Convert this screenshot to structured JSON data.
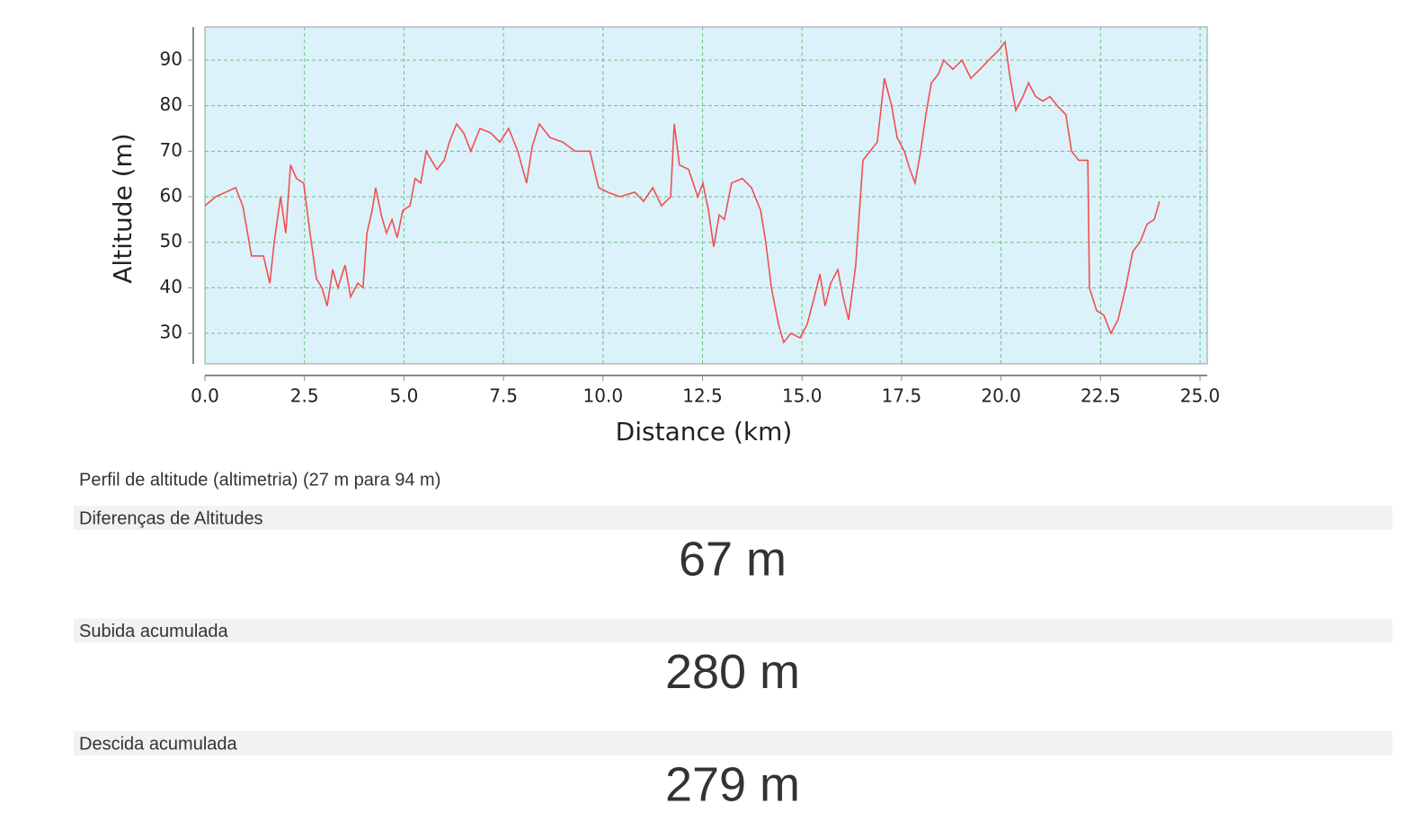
{
  "chart_data": {
    "type": "line",
    "xlabel": "Distance (km)",
    "ylabel": "Altitude (m)",
    "x": [
      0,
      0.27,
      0.77,
      0.95,
      1.17,
      1.47,
      1.63,
      1.74,
      1.9,
      2.03,
      2.15,
      2.3,
      2.48,
      2.64,
      2.8,
      2.94,
      3.07,
      3.21,
      3.34,
      3.52,
      3.66,
      3.84,
      3.97,
      4.07,
      4.2,
      4.29,
      4.43,
      4.56,
      4.7,
      4.83,
      4.97,
      5.15,
      5.28,
      5.42,
      5.56,
      5.69,
      5.83,
      6.01,
      6.14,
      6.32,
      6.5,
      6.68,
      6.91,
      7.18,
      7.41,
      7.63,
      7.86,
      8.08,
      8.22,
      8.4,
      8.67,
      8.99,
      9.3,
      9.67,
      9.89,
      10.12,
      10.43,
      10.8,
      11.02,
      11.25,
      11.47,
      11.7,
      11.79,
      11.92,
      12.15,
      12.38,
      12.51,
      12.65,
      12.78,
      12.92,
      13.05,
      13.23,
      13.5,
      13.73,
      13.96,
      14.09,
      14.23,
      14.41,
      14.54,
      14.72,
      14.95,
      15.13,
      15.31,
      15.45,
      15.58,
      15.72,
      15.9,
      16.03,
      16.17,
      16.35,
      16.53,
      16.71,
      16.89,
      17.07,
      17.25,
      17.39,
      17.57,
      17.71,
      17.84,
      17.98,
      18.11,
      18.25,
      18.43,
      18.56,
      18.79,
      19.02,
      19.24,
      19.47,
      19.69,
      19.92,
      20.1,
      20.23,
      20.37,
      20.55,
      20.69,
      20.87,
      21.05,
      21.23,
      21.41,
      21.63,
      21.77,
      21.95,
      22.18,
      22.22,
      22.4,
      22.58,
      22.76,
      22.94,
      23.13,
      23.31,
      23.49,
      23.67,
      23.85,
      23.98
    ],
    "series": [
      {
        "color": "#f05050",
        "values": [
          58,
          60,
          62,
          58,
          47,
          47,
          41,
          50,
          60,
          52,
          67,
          64,
          63,
          52,
          42,
          40,
          36,
          44,
          40,
          45,
          38,
          41,
          40,
          52,
          57,
          62,
          56,
          52,
          55,
          51,
          57,
          58,
          64,
          63,
          70,
          68,
          66,
          68,
          72,
          76,
          74,
          70,
          75,
          74,
          72,
          75,
          70,
          63,
          71,
          76,
          73,
          72,
          70,
          70,
          62,
          61,
          60,
          61,
          59,
          62,
          58,
          60,
          76,
          67,
          66,
          60,
          63,
          57,
          49,
          56,
          55,
          63,
          64,
          62,
          57,
          50,
          40,
          32,
          28,
          30,
          29,
          32,
          38,
          43,
          36,
          41,
          44,
          38,
          33,
          45,
          68,
          70,
          72,
          86,
          80,
          73,
          70,
          66,
          63,
          70,
          78,
          85,
          87,
          90,
          88,
          90,
          86,
          88,
          90,
          92,
          94,
          86,
          79,
          82,
          85,
          82,
          81,
          82,
          80,
          78,
          70,
          68,
          68,
          40,
          35,
          34,
          30,
          33,
          40,
          48,
          50,
          54,
          55,
          59
        ]
      }
    ],
    "xlim": [
      0,
      25.18
    ],
    "ylim": [
      23.3,
      97.3
    ],
    "xticks": [
      {
        "value": 0,
        "label": "0.0"
      },
      2.5,
      {
        "value": 5,
        "label": "5.0"
      },
      7.5,
      {
        "value": 10,
        "label": "10.0"
      },
      12.5,
      {
        "value": 15,
        "label": "15.0"
      },
      17.5,
      {
        "value": 20,
        "label": "20.0"
      },
      22.5,
      {
        "value": 25,
        "label": "25.0"
      }
    ],
    "yticks": [
      30,
      40,
      50,
      60,
      70,
      80,
      90
    ],
    "grid": true
  },
  "caption": "Perfil de altitude (altimetria) (27 m para 94 m)",
  "stats": [
    {
      "label": "Diferenças de Altitudes",
      "value": "67 m"
    },
    {
      "label": "Subida acumulada",
      "value": "280 m"
    },
    {
      "label": "Descida acumulada",
      "value": "279 m"
    }
  ]
}
